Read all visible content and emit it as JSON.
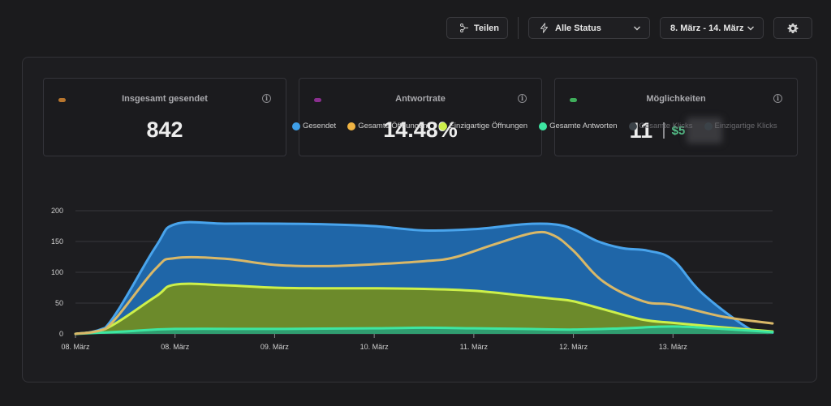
{
  "toolbar": {
    "share_label": "Teilen",
    "status_label": "Alle Status",
    "date_label": "8. März - 14. März"
  },
  "cards": [
    {
      "label": "Insgesamt gesendet",
      "value": "842",
      "color": "#b8762e"
    },
    {
      "label": "Antwortrate",
      "value": "14.48%",
      "color": "#8a2f8f"
    },
    {
      "label": "Möglichkeiten",
      "value": "11",
      "money": "$5",
      "color": "#3fae5b"
    }
  ],
  "legend": [
    {
      "label": "Gesendet",
      "color": "#3f9fe8",
      "active": true
    },
    {
      "label": "Gesamte Öffnungen",
      "color": "#f0b443",
      "active": true
    },
    {
      "label": "Einzigartige Öffnungen",
      "color": "#cdf04a",
      "active": true
    },
    {
      "label": "Gesamte Antworten",
      "color": "#3de6a2",
      "active": true
    },
    {
      "label": "Gesamte Klicks",
      "color": "#3b4248",
      "active": false
    },
    {
      "label": "Einzigartige Klicks",
      "color": "#3b4248",
      "active": false
    }
  ],
  "chart_data": {
    "type": "area",
    "ylim": [
      0,
      200
    ],
    "yticks": [
      0,
      50,
      100,
      150,
      200
    ],
    "xlim": [
      0,
      7
    ],
    "xticks": [
      {
        "x": 0,
        "label": "08. März"
      },
      {
        "x": 1,
        "label": "08. März"
      },
      {
        "x": 2,
        "label": "09. März"
      },
      {
        "x": 3,
        "label": "10. März"
      },
      {
        "x": 4,
        "label": "11. März"
      },
      {
        "x": 5,
        "label": "12. März"
      },
      {
        "x": 6,
        "label": "13. März"
      }
    ],
    "series": [
      {
        "name": "Gesendet",
        "fill": "#1f66a8",
        "stroke": "#49a4ec",
        "opacity": 1,
        "x": [
          0,
          0.3,
          0.8,
          1.0,
          1.5,
          2.0,
          2.5,
          3.0,
          3.5,
          4.0,
          4.5,
          4.8,
          5.0,
          5.25,
          5.5,
          5.75,
          6.0,
          6.3,
          6.8,
          7.0
        ],
        "y": [
          0,
          10,
          140,
          178,
          179,
          179,
          178,
          175,
          168,
          170,
          178,
          178,
          170,
          150,
          139,
          135,
          120,
          65,
          5,
          2
        ]
      },
      {
        "name": "Einzigartige Öffnungen",
        "fill": "#6c8a2b",
        "stroke": "#cdf04a",
        "opacity": 1,
        "x": [
          0,
          0.3,
          0.8,
          1.0,
          1.5,
          2.0,
          2.5,
          3.0,
          3.5,
          4.0,
          4.5,
          4.8,
          5.0,
          5.3,
          5.7,
          6.0,
          6.4,
          7.0
        ],
        "y": [
          0,
          8,
          60,
          80,
          79,
          75,
          74,
          74,
          73,
          70,
          62,
          57,
          53,
          40,
          23,
          18,
          12,
          4
        ]
      },
      {
        "name": "Gesamte Antworten",
        "fill": "#2a9e78",
        "stroke": "#3de6a2",
        "opacity": 0.9,
        "x": [
          0,
          0.5,
          1.0,
          2.0,
          3.0,
          3.5,
          4.0,
          4.5,
          5.0,
          5.5,
          6.0,
          6.5,
          7.0
        ],
        "y": [
          0,
          4,
          8,
          8,
          9,
          10,
          9,
          8,
          7,
          9,
          12,
          8,
          3
        ]
      },
      {
        "name": "Gesamte Öffnungen",
        "fill": "none",
        "stroke": "#d9b868",
        "opacity": 1,
        "x": [
          0,
          0.3,
          0.8,
          1.0,
          1.5,
          2.0,
          2.5,
          3.0,
          3.5,
          3.8,
          4.2,
          4.6,
          4.8,
          5.0,
          5.3,
          5.7,
          6.0,
          6.5,
          7.0
        ],
        "y": [
          0,
          8,
          105,
          123,
          122,
          112,
          110,
          113,
          118,
          124,
          145,
          164,
          160,
          135,
          85,
          53,
          47,
          28,
          17
        ]
      }
    ]
  }
}
